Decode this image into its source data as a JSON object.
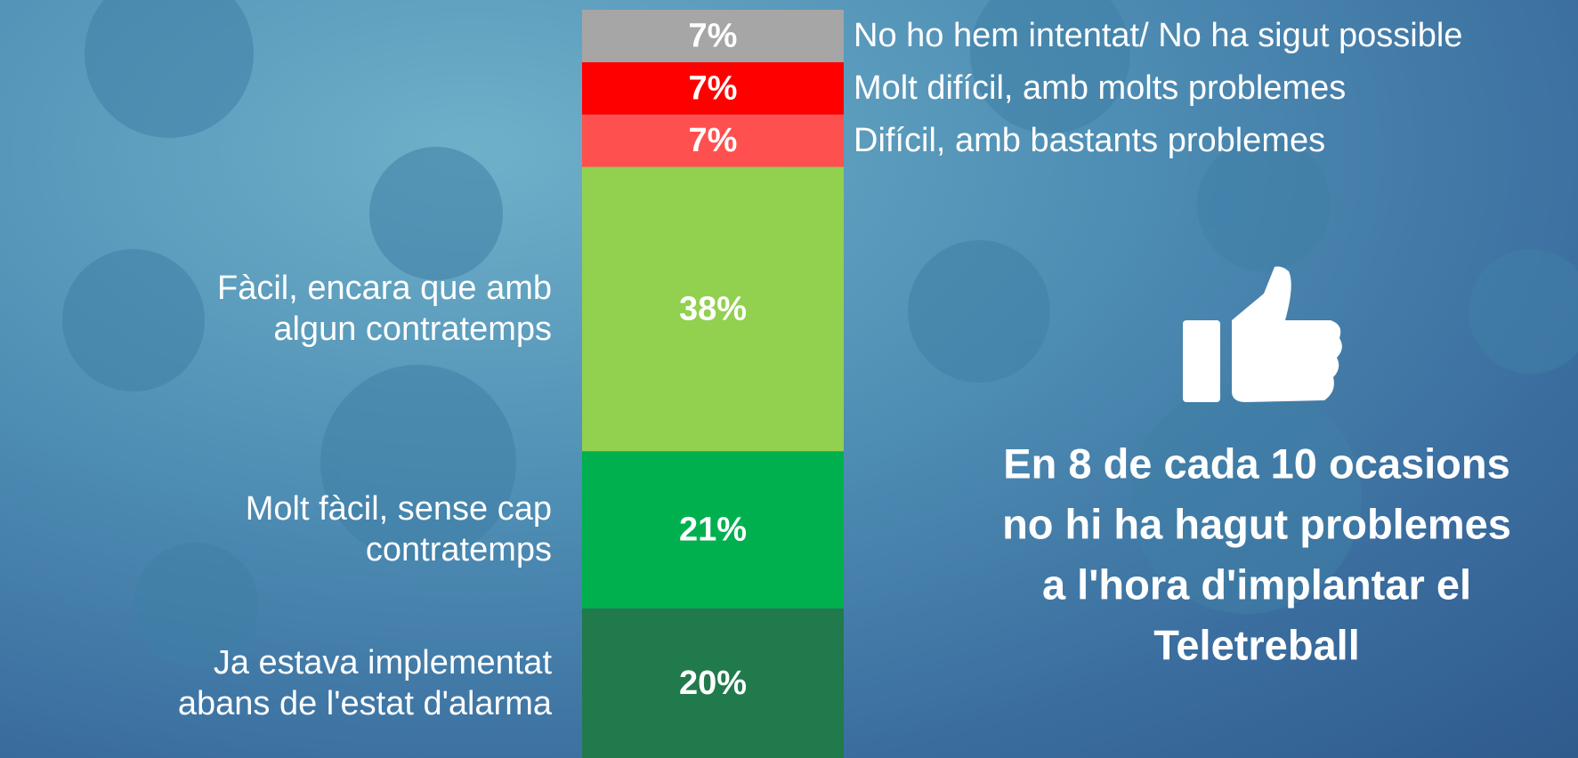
{
  "chart_data": {
    "type": "stacked-bar",
    "categories": [
      "Ja estava implementat\nabans de l'estat d'alarma",
      "Molt fàcil, sense cap\ncontratemps",
      "Fàcil, encara que amb\nalgun contratemps",
      "Difícil, amb bastants problemes",
      "Molt difícil, amb molts problemes",
      "No ho hem intentat/ No ha sigut possible"
    ],
    "values": [
      20,
      21,
      38,
      7,
      7,
      7
    ],
    "value_labels": [
      "20%",
      "21%",
      "38%",
      "7%",
      "7%",
      "7%"
    ],
    "colors": [
      "#217a4b",
      "#00b04f",
      "#92d050",
      "#ff5050",
      "#ff0000",
      "#a6a6a6"
    ],
    "ylim": [
      0,
      100
    ],
    "annotation": [
      "En 8 de cada 10 ocasions",
      "no hi ha hagut problemes",
      "a l'hora d'implantar el",
      "Teletreball"
    ]
  }
}
